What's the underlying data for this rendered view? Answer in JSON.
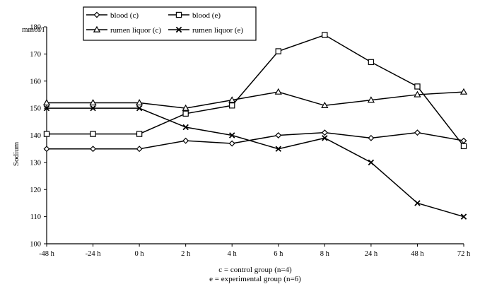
{
  "chart_data": {
    "type": "line",
    "title": "",
    "ylabel": "Sodium",
    "yunit": "mmol/l",
    "ylim": [
      100,
      180
    ],
    "yticks": [
      100,
      110,
      120,
      130,
      140,
      150,
      160,
      170,
      180
    ],
    "categories": [
      "-48 h",
      "-24 h",
      "0 h",
      "2 h",
      "4 h",
      "6 h",
      "8 h",
      "24 h",
      "48 h",
      "72 h"
    ],
    "series": [
      {
        "name": "blood (c)",
        "marker": "diamond",
        "values": [
          135,
          135,
          135,
          138,
          137,
          140,
          141,
          139,
          141,
          138
        ]
      },
      {
        "name": "blood (e)",
        "marker": "square",
        "values": [
          140.5,
          140.5,
          140.5,
          148,
          151,
          171,
          177,
          167,
          158,
          136
        ]
      },
      {
        "name": "rumen liquor (c)",
        "marker": "triangle",
        "values": [
          152,
          152,
          152,
          150,
          153,
          156,
          151,
          153,
          155,
          156
        ]
      },
      {
        "name": "rumen liquor (e)",
        "marker": "x",
        "values": [
          150,
          150,
          150,
          143,
          140,
          135,
          139,
          130,
          115,
          110
        ]
      }
    ],
    "legend_position": "top",
    "grid": false,
    "captions": [
      "c = control group (n=4)",
      "e = experimental group (n=6)"
    ]
  }
}
